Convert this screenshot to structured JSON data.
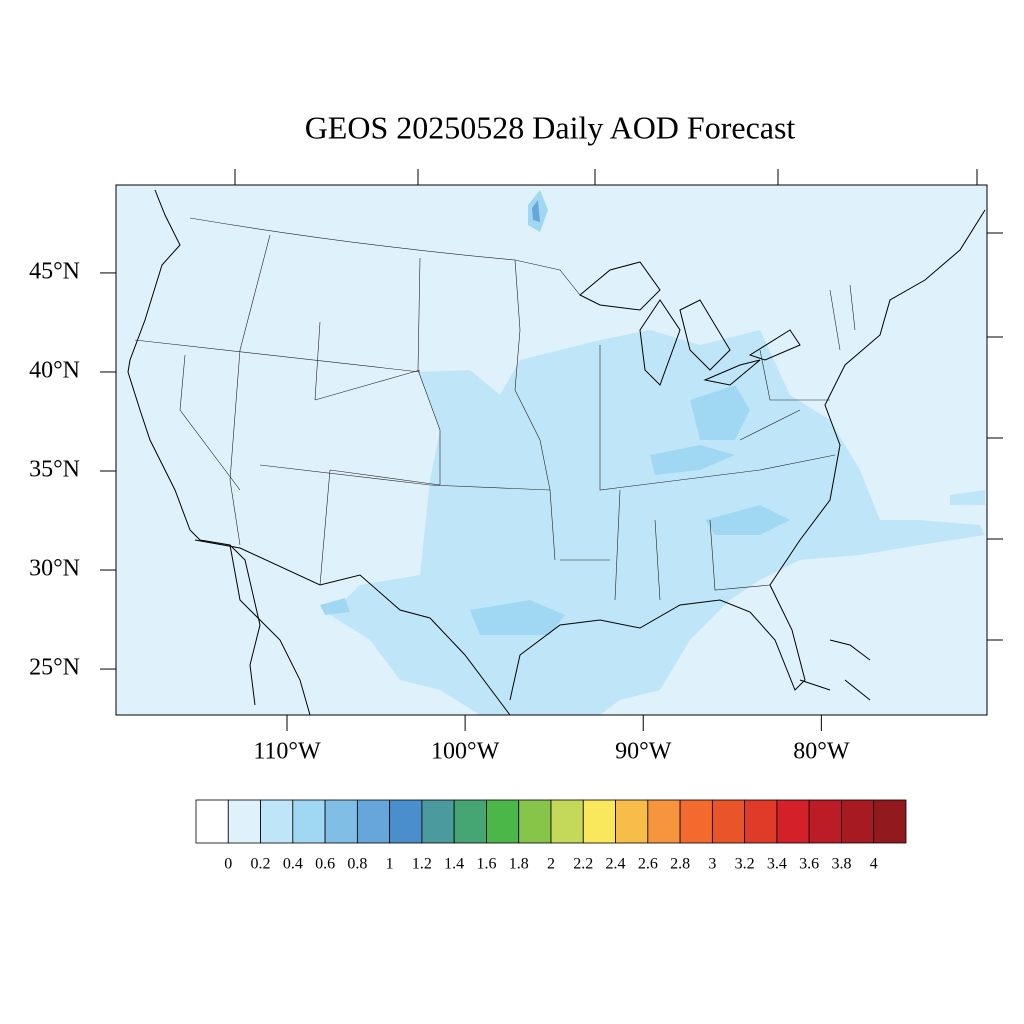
{
  "chart_data": {
    "type": "map",
    "title": "GEOS 20250528 Daily AOD Forecast",
    "xlim": [
      -119.6,
      -70.7
    ],
    "ylim": [
      22.68,
      49.44
    ],
    "xticks": [
      {
        "value": -110,
        "label": "110°W"
      },
      {
        "value": -100,
        "label": "100°W"
      },
      {
        "value": -90,
        "label": "90°W"
      },
      {
        "value": -80,
        "label": "80°W"
      }
    ],
    "yticks": [
      {
        "value": 45,
        "label": "45°N"
      },
      {
        "value": 40,
        "label": "40°N"
      },
      {
        "value": 35,
        "label": "35°N"
      },
      {
        "value": 30,
        "label": "30°N"
      },
      {
        "value": 25,
        "label": "25°N"
      }
    ],
    "colorbar": {
      "levels": [
        0,
        0.2,
        0.4,
        0.6,
        0.8,
        1,
        1.2,
        1.4,
        1.6,
        1.8,
        2,
        2.2,
        2.4,
        2.6,
        2.8,
        3,
        3.2,
        3.4,
        3.6,
        3.8,
        4
      ],
      "colors": [
        "#ffffff",
        "#dff2fc",
        "#bfe6f8",
        "#a0d8f3",
        "#80bee6",
        "#66a6da",
        "#4a8fcc",
        "#4a9a9e",
        "#45a674",
        "#4ab748",
        "#86c44a",
        "#c4d85a",
        "#f9e75c",
        "#f8bd49",
        "#f7953e",
        "#f26a2e",
        "#ea5429",
        "#e03a28",
        "#d42028",
        "#bc1c26",
        "#a81a22",
        "#921a1e"
      ]
    }
  }
}
